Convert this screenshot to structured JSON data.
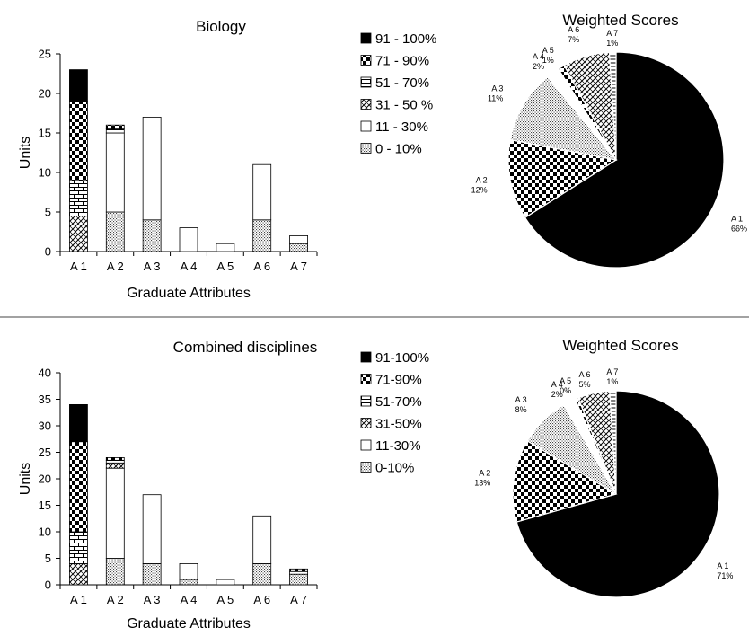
{
  "patterns": {
    "91": "solid-black",
    "71": "black-checker",
    "51": "brick",
    "31": "crosshatch-diagonal",
    "11": "white",
    "0": "dots"
  },
  "chart_data": [
    {
      "type": "bar",
      "stacked": true,
      "title": "Biology",
      "xlabel": "Graduate Attributes",
      "ylabel": "Units",
      "ylim": [
        0,
        25
      ],
      "yticks": [
        0,
        5,
        10,
        15,
        20,
        25
      ],
      "categories": [
        "A 1",
        "A 2",
        "A 3",
        "A 4",
        "A 5",
        "A 6",
        "A 7"
      ],
      "legend_position": "top-right",
      "series": [
        {
          "name": "0 - 10%",
          "key": "0",
          "values": [
            0,
            5,
            4,
            0,
            0,
            4,
            1
          ]
        },
        {
          "name": "11 - 30%",
          "key": "11",
          "values": [
            0,
            10,
            13,
            3,
            1,
            7,
            1
          ]
        },
        {
          "name": "31 - 50 %",
          "key": "31",
          "values": [
            4.5,
            0,
            0,
            0,
            0,
            0,
            0
          ]
        },
        {
          "name": "51 - 70%",
          "key": "51",
          "values": [
            4.5,
            0.5,
            0,
            0,
            0,
            0,
            0
          ]
        },
        {
          "name": "71 - 90%",
          "key": "71",
          "values": [
            10,
            0.5,
            0,
            0,
            0,
            0,
            0
          ]
        },
        {
          "name": "91 - 100%",
          "key": "91",
          "values": [
            4,
            0,
            0,
            0,
            0,
            0,
            0
          ]
        }
      ]
    },
    {
      "type": "pie",
      "title": "Weighted Scores",
      "slices": [
        {
          "label": "A 1",
          "pct": "66%",
          "value": 66,
          "key": "91"
        },
        {
          "label": "A 2",
          "pct": "12%",
          "value": 12,
          "key": "71"
        },
        {
          "label": "A 3",
          "pct": "11%",
          "value": 11,
          "key": "0"
        },
        {
          "label": "A 4",
          "pct": "2%",
          "value": 2,
          "key": "11"
        },
        {
          "label": "A 5",
          "pct": "1%",
          "value": 1,
          "key": "71"
        },
        {
          "label": "A 6",
          "pct": "7%",
          "value": 7,
          "key": "31"
        },
        {
          "label": "A 7",
          "pct": "1%",
          "value": 1,
          "key": "brick"
        }
      ]
    },
    {
      "type": "bar",
      "stacked": true,
      "title": "Combined disciplines",
      "xlabel": "Graduate Attributes",
      "ylabel": "Units",
      "ylim": [
        0,
        40
      ],
      "yticks": [
        0,
        5,
        10,
        15,
        20,
        25,
        30,
        35,
        40
      ],
      "categories": [
        "A 1",
        "A 2",
        "A 3",
        "A 4",
        "A 5",
        "A 6",
        "A 7"
      ],
      "legend_position": "top-right",
      "series": [
        {
          "name": "0-10%",
          "key": "0",
          "values": [
            0,
            5,
            4,
            1,
            0,
            4,
            2
          ]
        },
        {
          "name": "11-30%",
          "key": "11",
          "values": [
            0,
            17,
            13,
            3,
            1,
            9,
            0.5
          ]
        },
        {
          "name": "31-50%",
          "key": "31",
          "values": [
            4,
            1,
            0,
            0,
            0,
            0,
            0
          ]
        },
        {
          "name": "51-70%",
          "key": "51",
          "values": [
            6,
            0.5,
            0,
            0,
            0,
            0,
            0
          ]
        },
        {
          "name": "71-90%",
          "key": "71",
          "values": [
            17,
            0.5,
            0,
            0,
            0,
            0,
            0.5
          ]
        },
        {
          "name": "91-100%",
          "key": "91",
          "values": [
            7,
            0,
            0,
            0,
            0,
            0,
            0
          ]
        }
      ]
    },
    {
      "type": "pie",
      "title": "Weighted Scores",
      "slices": [
        {
          "label": "A 1",
          "pct": "71%",
          "value": 71,
          "key": "91"
        },
        {
          "label": "A 2",
          "pct": "13%",
          "value": 13,
          "key": "71"
        },
        {
          "label": "A 3",
          "pct": "8%",
          "value": 8,
          "key": "0"
        },
        {
          "label": "A 4",
          "pct": "2%",
          "value": 2,
          "key": "11"
        },
        {
          "label": "A 5",
          "pct": "0%",
          "value": 0.5,
          "key": "71"
        },
        {
          "label": "A 6",
          "pct": "5%",
          "value": 5,
          "key": "31"
        },
        {
          "label": "A 7",
          "pct": "1%",
          "value": 1,
          "key": "brick"
        }
      ]
    }
  ]
}
